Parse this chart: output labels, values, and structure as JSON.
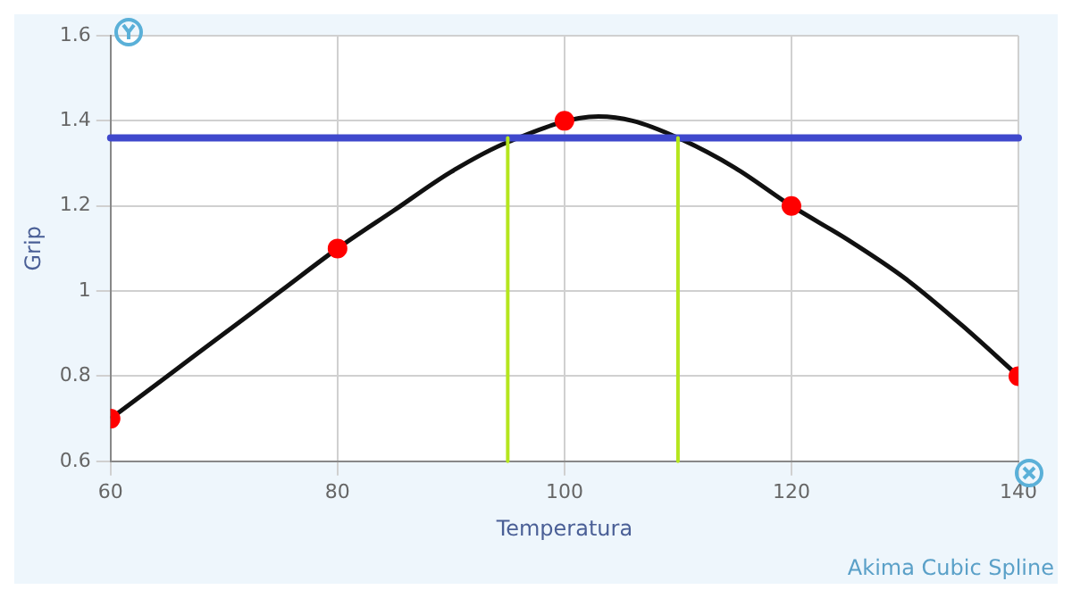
{
  "chart_data": {
    "type": "line",
    "xlabel": "Temperatura",
    "ylabel": "Grip",
    "annotations": [
      "Akima Cubic Spline"
    ],
    "xlim": [
      60,
      140
    ],
    "xticks": [
      60,
      80,
      100,
      120,
      140
    ],
    "ylim": [
      0.6,
      1.6
    ],
    "yticks": [
      0.6,
      0.8,
      1,
      1.2,
      1.4,
      1.6
    ],
    "grid": true,
    "legend": false,
    "series": [
      {
        "type": "line",
        "color": "#111111",
        "marker": "none",
        "x": [
          60,
          65,
          70,
          75,
          80,
          85,
          90,
          95,
          103,
          106,
          110,
          115,
          120,
          125,
          130,
          135,
          140
        ],
        "values": [
          0.7,
          0.8,
          0.9,
          1.0,
          1.1,
          1.19,
          1.28,
          1.35,
          1.41,
          1.4,
          1.36,
          1.29,
          1.2,
          1.12,
          1.03,
          0.92,
          0.8
        ]
      },
      {
        "type": "scatter",
        "color": "#ff0000",
        "marker": "circle",
        "x": [
          60,
          80,
          100,
          120,
          140
        ],
        "values": [
          0.7,
          1.1,
          1.4,
          1.2,
          0.8
        ]
      }
    ],
    "ref_lines": [
      {
        "axis": "y",
        "value": 1.36,
        "color": "#3f48cc"
      },
      {
        "axis": "x",
        "value": 95,
        "color": "#b5e61d"
      },
      {
        "axis": "x",
        "value": 110,
        "color": "#b5e61d"
      }
    ]
  }
}
